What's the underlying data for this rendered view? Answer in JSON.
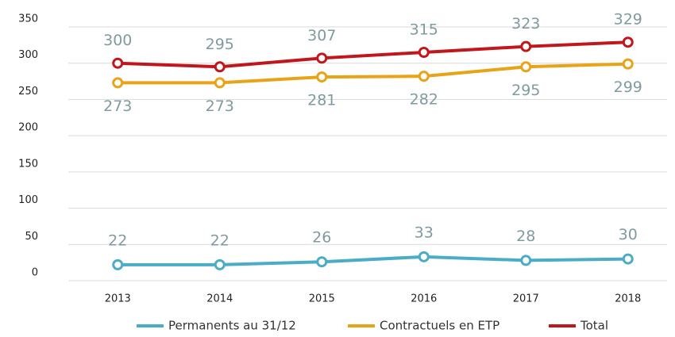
{
  "chart_data": {
    "type": "line",
    "categories": [
      "2013",
      "2014",
      "2015",
      "2016",
      "2017",
      "2018"
    ],
    "series": [
      {
        "name": "Permanents au 31/12",
        "color": "#4bacc6",
        "values": [
          22,
          22,
          26,
          33,
          28,
          30
        ]
      },
      {
        "name": "Contractuels en ETP",
        "color": "#e8a317",
        "values": [
          273,
          273,
          281,
          282,
          295,
          299
        ]
      },
      {
        "name": "Total",
        "color": "#c0161c",
        "values": [
          300,
          295,
          307,
          315,
          323,
          329
        ]
      }
    ],
    "ylim": [
      0,
      350
    ],
    "yticks": [
      0,
      50,
      100,
      150,
      200,
      250,
      300,
      350
    ],
    "grid": true,
    "legend": "bottom"
  }
}
